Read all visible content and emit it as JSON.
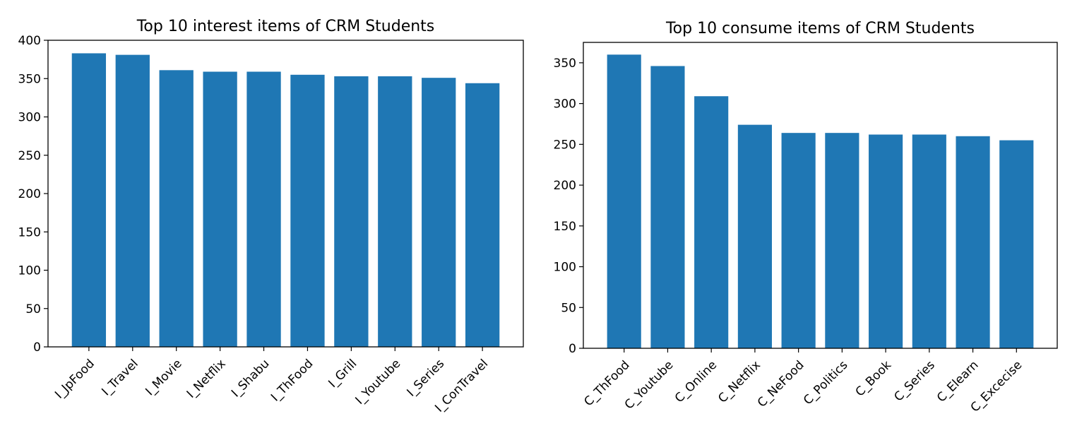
{
  "chart_data": [
    {
      "type": "bar",
      "title": "Top 10 interest items of CRM Students",
      "categories": [
        "I_JpFood",
        "I_Travel",
        "I_Movie",
        "I_Netflix",
        "I_Shabu",
        "I_ThFood",
        "I_Grill",
        "I_Youtube",
        "I_Series",
        "I_ConTravel"
      ],
      "values": [
        383,
        381,
        361,
        359,
        359,
        355,
        353,
        353,
        351,
        344
      ],
      "ylim": [
        0,
        400
      ],
      "yticks": [
        0,
        50,
        100,
        150,
        200,
        250,
        300,
        350,
        400
      ],
      "color": "#1f77b4",
      "grid": false
    },
    {
      "type": "bar",
      "title": "Top 10 consume items of CRM Students",
      "categories": [
        "C_ThFood",
        "C_Youtube",
        "C_Online",
        "C_Netflix",
        "C_NeFood",
        "C_Politics",
        "C_Book",
        "C_Series",
        "C_Elearn",
        "C_Excecise"
      ],
      "values": [
        360,
        346,
        309,
        274,
        264,
        264,
        262,
        262,
        260,
        255
      ],
      "ylim": [
        0,
        375
      ],
      "yticks": [
        0,
        50,
        100,
        150,
        200,
        250,
        300,
        350
      ],
      "color": "#1f77b4",
      "grid": false
    }
  ]
}
